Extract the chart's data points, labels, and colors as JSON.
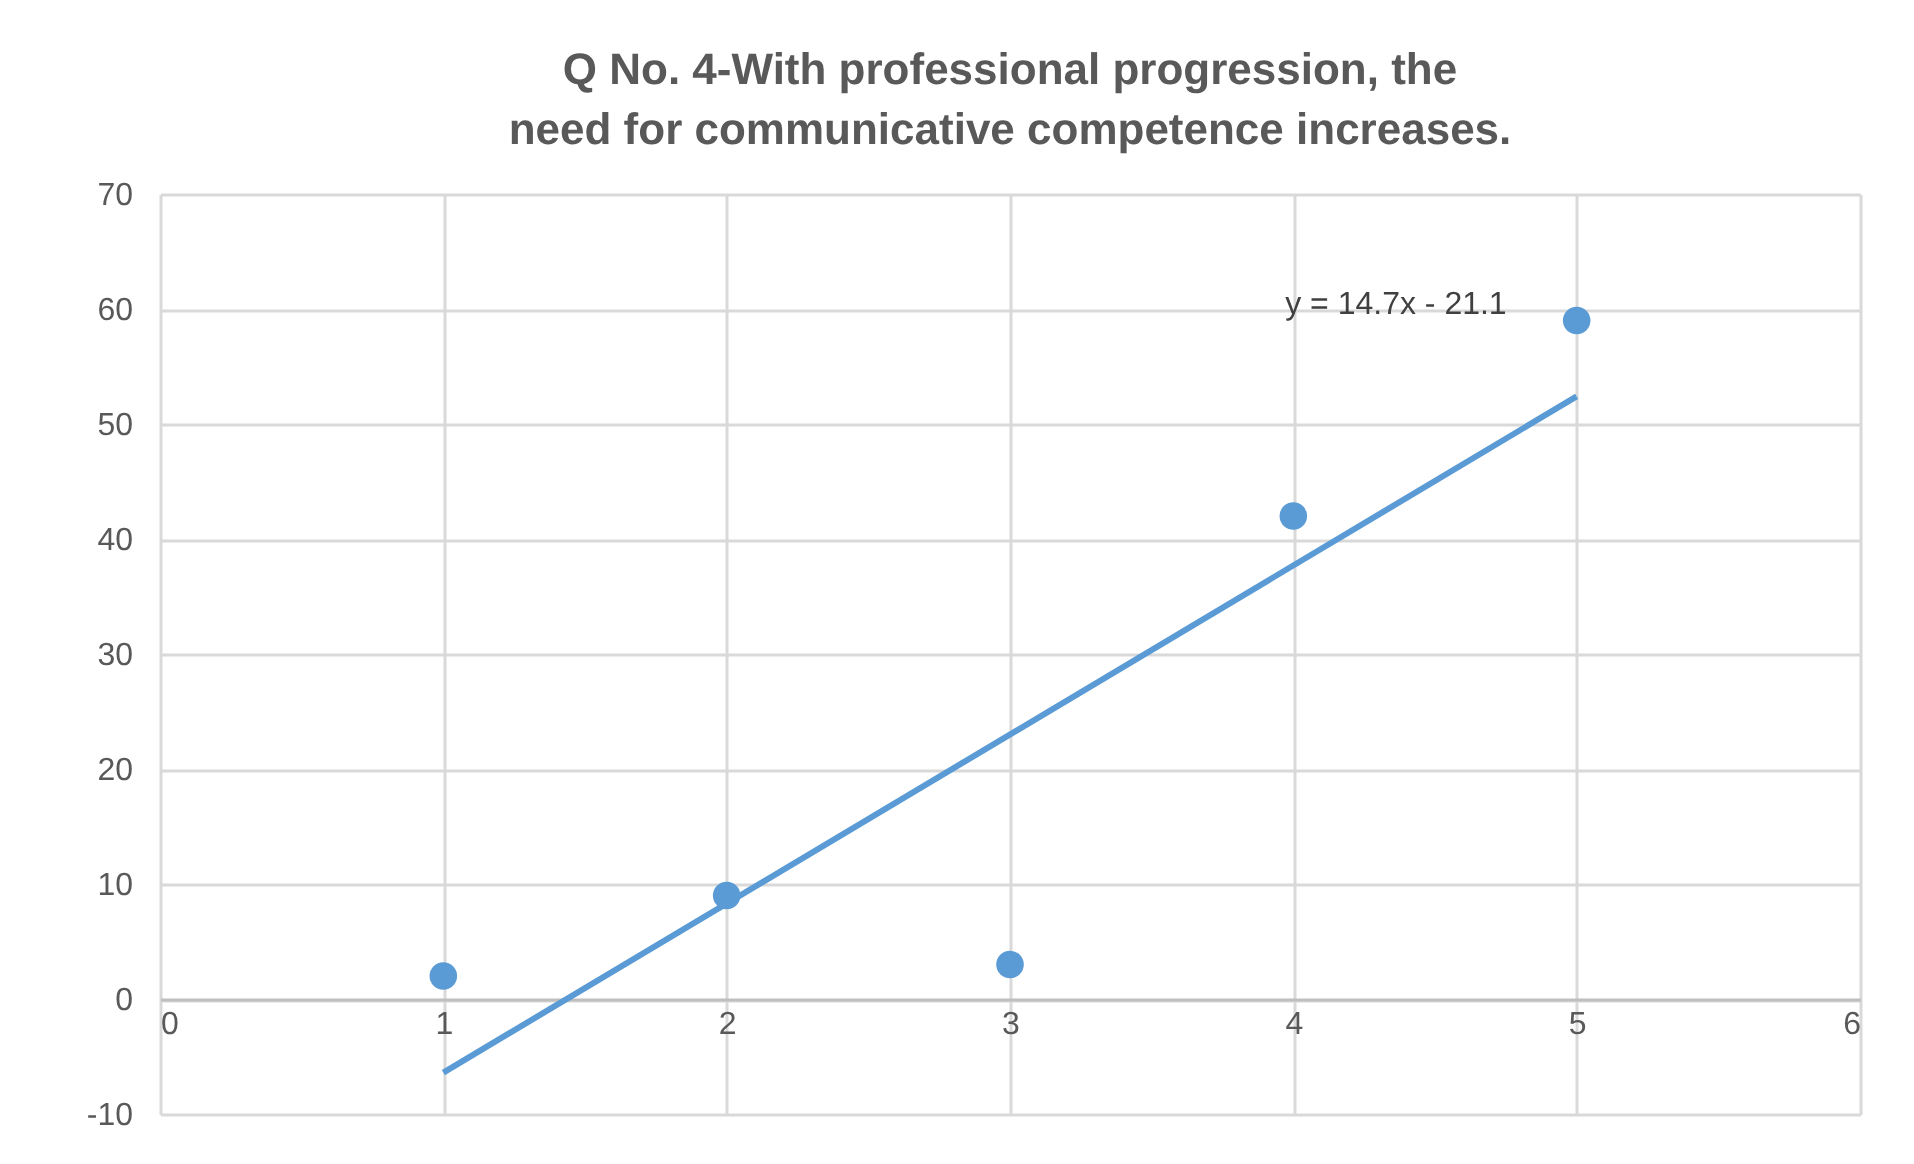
{
  "chart_data": {
    "type": "scatter",
    "title": "Q No. 4-With professional progression, the need for communicative competence increases.",
    "x": [
      1,
      2,
      3,
      4,
      5
    ],
    "series": [
      {
        "type": "scatter",
        "color": "#5b9bd5",
        "marker": "circle",
        "values": [
          2,
          9,
          3,
          42,
          59
        ]
      },
      {
        "type": "line",
        "color": "#5b9bd5",
        "marker": "none",
        "x": [
          1,
          5
        ],
        "values": [
          -6.4,
          52.4
        ]
      }
    ],
    "xlim": [
      0,
      6
    ],
    "xticks": [
      0,
      1,
      2,
      3,
      4,
      5,
      6
    ],
    "ylim": [
      -10,
      70
    ],
    "yticks": [
      -10,
      0,
      10,
      20,
      30,
      40,
      50,
      60,
      70
    ],
    "grid": true,
    "line_style": "solid",
    "annotations": [
      "y = 14.7x - 21.1"
    ]
  }
}
